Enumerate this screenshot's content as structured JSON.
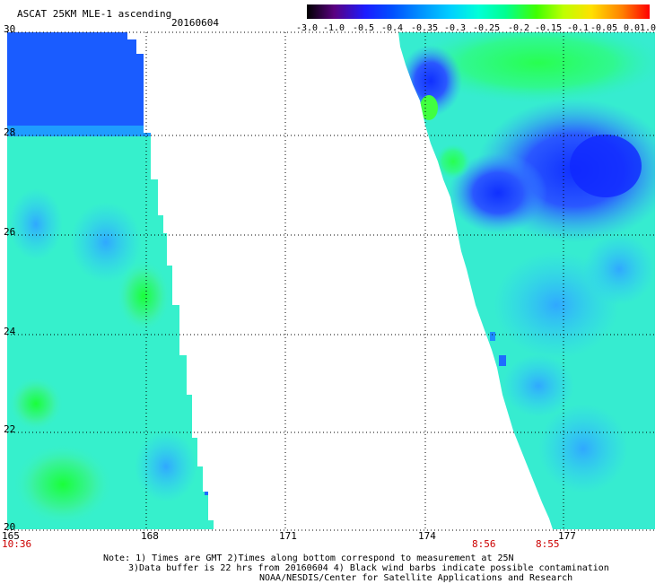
{
  "header": {
    "title": "ASCAT 25KM MLE-1 ascending",
    "date": "20160604"
  },
  "colorbar": {
    "labels": [
      "-3.0",
      "-1.0",
      "-0.5",
      "-0.4",
      "-0.35",
      "-0.3",
      "-0.25",
      "-0.2",
      "-0.15",
      "-0.1",
      "-0.05",
      "0.0",
      "1.0"
    ],
    "colors": [
      "#000000",
      "#5a0080",
      "#1c1cff",
      "#0050ff",
      "#0090ff",
      "#00d0ff",
      "#00ffd8",
      "#00ff90",
      "#40ff00",
      "#c0ff00",
      "#ffe000",
      "#ff8000",
      "#ff0000"
    ]
  },
  "axes": {
    "lat_labels": [
      "30",
      "28",
      "26",
      "24",
      "22",
      "20"
    ],
    "lon_labels": [
      "165",
      "168",
      "171",
      "174",
      "177"
    ]
  },
  "times": {
    "left": "10:36",
    "mid": "8:56",
    "right": "8:55"
  },
  "footer": {
    "line1": "Note: 1) Times are GMT 2)Times along bottom correspond to measurement at 25N",
    "line2": "3)Data buffer is 22 hrs from 20160604 4) Black wind barbs indicate possible contamination",
    "line3": "NOAA/NESDIS/Center for Satellite Applications and Research"
  }
}
